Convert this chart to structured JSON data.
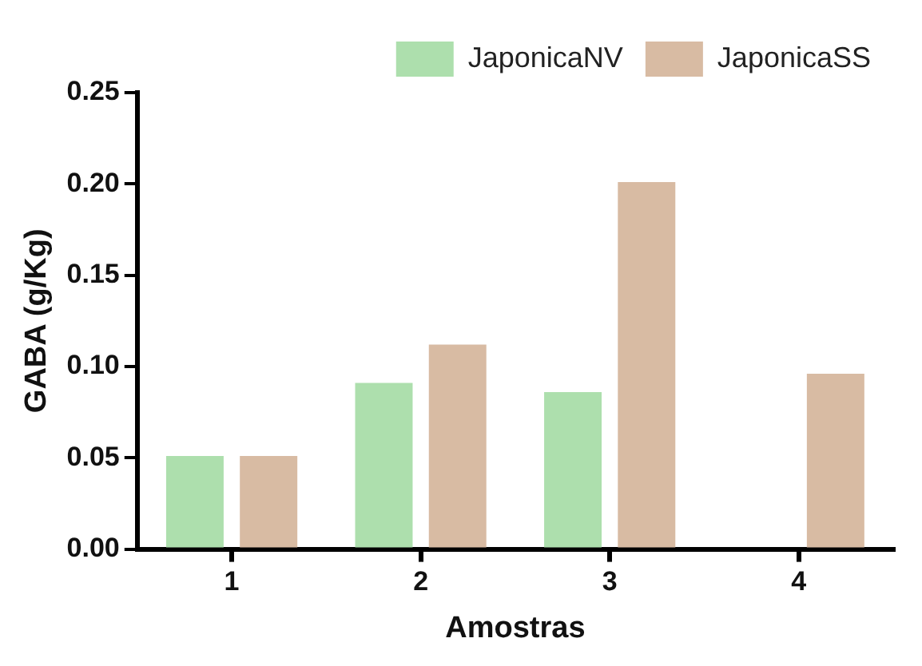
{
  "chart_data": {
    "type": "bar",
    "xlabel": "Amostras",
    "ylabel": "GABA (g/Kg)",
    "categories": [
      "1",
      "2",
      "3",
      "4"
    ],
    "series": [
      {
        "name": "JaponicaNV",
        "color": "#addfad",
        "values": [
          0.051,
          0.091,
          0.086,
          null
        ]
      },
      {
        "name": "JaponicaSS",
        "color": "#d8bba3",
        "values": [
          0.051,
          0.112,
          0.201,
          0.096
        ]
      }
    ],
    "ylim": [
      0,
      0.25
    ],
    "yticks": [
      {
        "value": 0,
        "label": "0.00"
      },
      {
        "value": 0.05,
        "label": "0.05"
      },
      {
        "value": 0.1,
        "label": "0.10"
      },
      {
        "value": 0.15,
        "label": "0.15"
      },
      {
        "value": 0.2,
        "label": "0.20"
      },
      {
        "value": 0.25,
        "label": "0.25"
      }
    ],
    "grid": false,
    "legend": "top"
  }
}
